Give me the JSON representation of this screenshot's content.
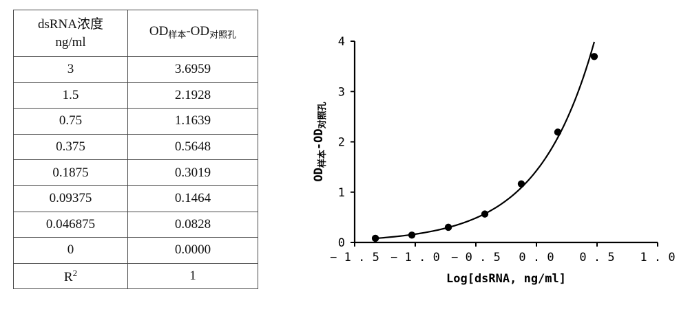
{
  "table": {
    "header": {
      "col1_line1": "dsRNA浓度",
      "col1_line2": "ng/ml",
      "col2_main1": "OD",
      "col2_sub1": "样本",
      "col2_main2": "-OD",
      "col2_sub2": "对照孔"
    },
    "rows": [
      {
        "conc": "3",
        "od": "3.6959"
      },
      {
        "conc": "1.5",
        "od": "2.1928"
      },
      {
        "conc": "0.75",
        "od": "1.1639"
      },
      {
        "conc": "0.375",
        "od": "0.5648"
      },
      {
        "conc": "0.1875",
        "od": "0.3019"
      },
      {
        "conc": "0.09375",
        "od": "0.1464"
      },
      {
        "conc": "0.046875",
        "od": "0.0828"
      },
      {
        "conc": "0",
        "od": "0.0000"
      }
    ],
    "r2": {
      "label": "R",
      "sup": "2",
      "value": "1"
    }
  },
  "chart_data": {
    "type": "scatter",
    "xlabel": "Log[dsRNA, ng/ml]",
    "ylabel": {
      "main1": "OD",
      "sub1": "样本",
      "main2": "-OD",
      "sub2": "对照孔"
    },
    "xlim": [
      -1.5,
      1.0
    ],
    "ylim": [
      0,
      4
    ],
    "xticks": [
      "-1.5",
      "-1.0",
      "-0.5",
      "0.0",
      "0.5",
      "1.0"
    ],
    "yticks": [
      "0",
      "1",
      "2",
      "3",
      "4"
    ],
    "x": [
      -1.329,
      -1.028,
      -0.727,
      -0.426,
      -0.125,
      0.176,
      0.477
    ],
    "y": [
      0.0828,
      0.1464,
      0.3019,
      0.5648,
      1.1639,
      2.1928,
      3.6959
    ],
    "fit_line": true,
    "grid": false
  }
}
